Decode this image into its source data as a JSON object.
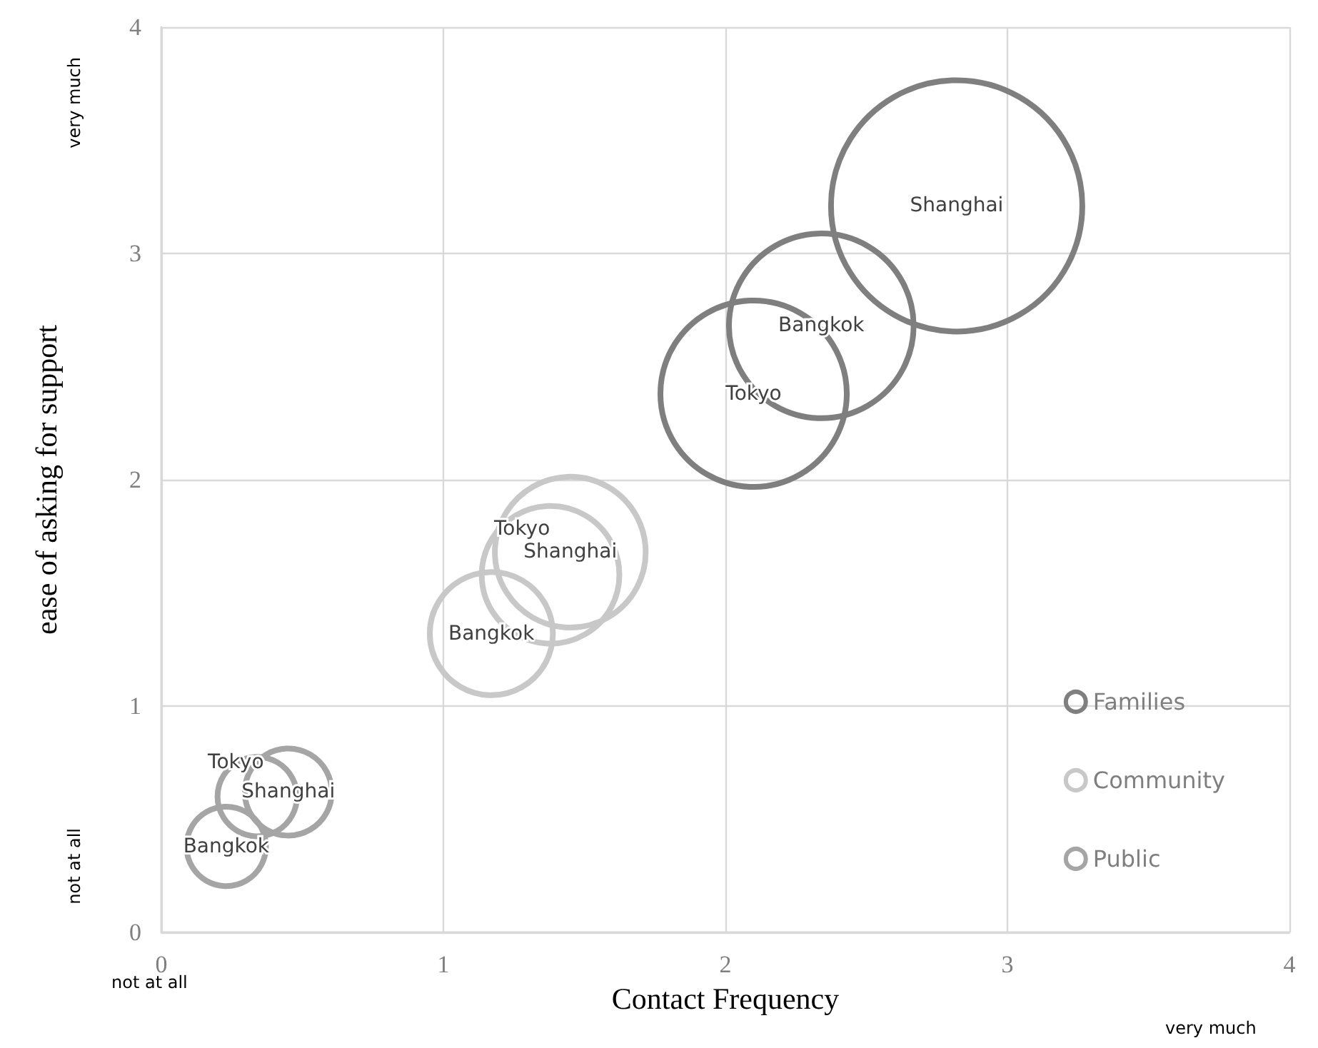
{
  "chart_data": {
    "type": "bubble",
    "xlabel": "Contact Frequency",
    "ylabel": "ease of asking for support",
    "xlim": [
      0,
      4
    ],
    "xticks": [
      0,
      1,
      2,
      3,
      4
    ],
    "ylim": [
      0,
      4
    ],
    "yticks": [
      0,
      1,
      2,
      3,
      4
    ],
    "grid": true,
    "legend": "bottom right",
    "series": [
      {
        "name": "Families",
        "color": "#7f7f7f",
        "x": [
          2.1,
          2.34,
          2.82
        ],
        "values": [
          2.38,
          2.68,
          3.21
        ],
        "sizes": [
          0.55,
          0.54,
          1
        ]
      },
      {
        "name": "Community",
        "color": "#c8c8c8",
        "x": [
          1.38,
          1.17,
          1.45
        ],
        "values": [
          1.58,
          1.32,
          1.68
        ],
        "sizes": [
          0.3,
          0.24,
          0.36
        ]
      },
      {
        "name": "Public",
        "color": "#a5a5a5",
        "x": [
          0.34,
          0.23,
          0.45
        ],
        "values": [
          0.6,
          0.38,
          0.62
        ],
        "sizes": [
          0.1,
          0.1,
          0.12
        ]
      }
    ],
    "annotations": [
      "very much",
      "not at all",
      "not at all",
      "very much",
      {
        "text": "Tokyo",
        "x": 2.1,
        "y": 2.38
      },
      {
        "text": "Bangkok",
        "x": 2.34,
        "y": 2.68
      },
      {
        "text": "Shanghai",
        "x": 2.82,
        "y": 3.21
      },
      {
        "text": "Tokyo",
        "x": 1.38,
        "y": 1.58
      },
      {
        "text": "Bangkok",
        "x": 1.17,
        "y": 1.32
      },
      {
        "text": "Shanghai",
        "x": 1.45,
        "y": 1.68
      },
      {
        "text": "Tokyo",
        "x": 0.34,
        "y": 0.6
      },
      {
        "text": "Bangkok",
        "x": 0.23,
        "y": 0.38
      },
      {
        "text": "Shanghai",
        "x": 0.45,
        "y": 0.62
      }
    ]
  }
}
